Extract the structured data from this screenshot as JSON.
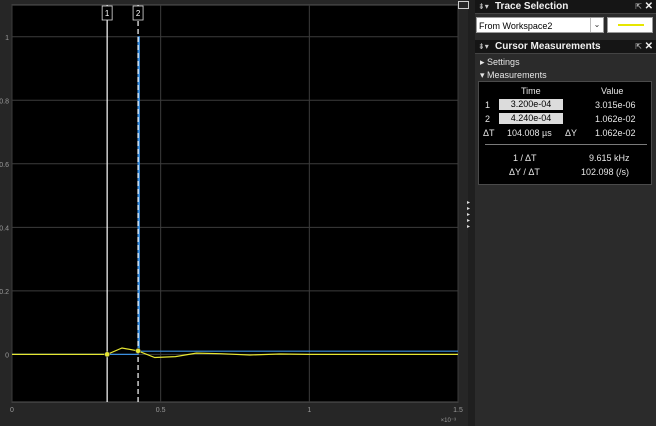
{
  "scope": {
    "cursor1_label": "1",
    "cursor2_label": "2",
    "x_scale_label": "×10⁻³",
    "colors": {
      "background": "#000000",
      "grid": "#3c3c3c",
      "signal1": "#3b8fe0",
      "signal2": "#e6e632",
      "cursor": "#ffffff",
      "axis_text": "#9a9a9a"
    }
  },
  "chart_data": {
    "type": "line",
    "title": "",
    "xlabel": "",
    "ylabel": "",
    "x_ticks": [
      "0",
      "0.5",
      "1",
      "1.5"
    ],
    "y_ticks": [
      "0",
      "0.2",
      "0.4",
      "0.6",
      "0.8",
      "1"
    ],
    "xlim": [
      0,
      0.0015
    ],
    "ylim": [
      -0.15,
      1.1
    ],
    "grid": true,
    "series": [
      {
        "color": "#3b8fe0",
        "x": [
          0,
          0.000424,
          0.000424,
          0.000428,
          0.000428,
          0.0015
        ],
        "y": [
          0,
          0,
          1,
          1,
          0.01,
          0.01
        ]
      },
      {
        "color": "#e6e632",
        "x": [
          0,
          0.00032,
          0.00037,
          0.000424,
          0.00048,
          0.00055,
          0.00062,
          0.0007,
          0.0008,
          0.0009,
          0.001,
          0.0015
        ],
        "y": [
          0,
          0,
          0.02,
          0.011,
          -0.01,
          -0.007,
          0.004,
          0.002,
          -0.002,
          0.001,
          0,
          0
        ]
      }
    ],
    "cursors": [
      {
        "label": "1",
        "x": 0.00032,
        "style": "solid"
      },
      {
        "label": "2",
        "x": 0.000424,
        "style": "dashed"
      }
    ]
  },
  "trace_selection": {
    "title": "Trace Selection",
    "selected": "From Workspace2",
    "swatch_color": "#e6e600"
  },
  "cursor_measurements": {
    "title": "Cursor Measurements",
    "settings_label": "Settings",
    "measurements_label": "Measurements",
    "col_time": "Time",
    "col_value": "Value",
    "row1_index": "1",
    "row1_time": "3.200e-04",
    "row1_value": "3.015e-06",
    "row2_index": "2",
    "row2_time": "4.240e-04",
    "row2_value": "1.062e-02",
    "dt_label": "ΔT",
    "dt_value": "104.008 µs",
    "dy_label": "ΔY",
    "dy_value": "1.062e-02",
    "inv_dt_label": "1 / ΔT",
    "inv_dt_value": "9.615 kHz",
    "dy_dt_label": "ΔY / ΔT",
    "dy_dt_value": "102.098 (/s)"
  }
}
